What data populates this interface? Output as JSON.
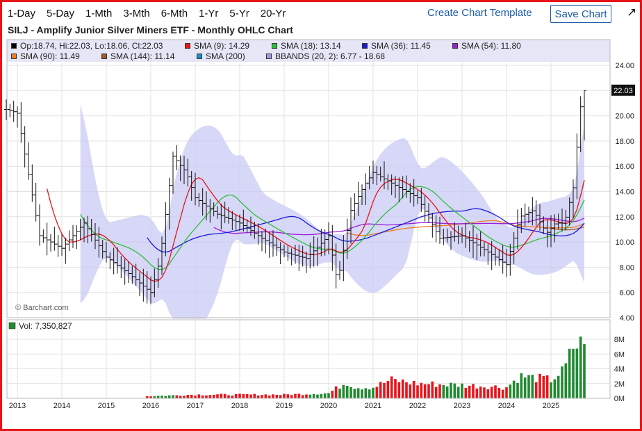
{
  "toolbar": {
    "ranges": [
      "1-Day",
      "5-Day",
      "1-Mth",
      "3-Mth",
      "6-Mth",
      "1-Yr",
      "5-Yr",
      "20-Yr"
    ],
    "template_label": "Create Chart Template",
    "save_label": "Save Chart",
    "expand_icon": "expand-arrow-icon"
  },
  "chart_title": "SILJ - Amplify Junior Silver Miners ETF - Monthly OHLC Chart",
  "legend": [
    {
      "label": "Op:18.74, Hi:22.03, Lo:18.06, Cl:22.03",
      "color": "#000000"
    },
    {
      "label": "SMA (9): 14.29",
      "color": "#e8141b"
    },
    {
      "label": "SMA (18): 13.14",
      "color": "#2ebf3a"
    },
    {
      "label": "SMA (36): 11.45",
      "color": "#1a1adb"
    },
    {
      "label": "SMA (54): 11.80",
      "color": "#9b1fd6"
    },
    {
      "label": "SMA (90): 11.49",
      "color": "#f07b22"
    },
    {
      "label": "SMA (144): 11.14",
      "color": "#9c5a2a"
    },
    {
      "label": "SMA (200)",
      "color": "#1c8fc4"
    },
    {
      "label": "BBANDS (20, 2): 6.77 - 18.68",
      "color": "#9a9ae8"
    }
  ],
  "watermark": "© Barchart.com",
  "last_price_label": "22.03",
  "volume_label": "Vol: 7,350,827",
  "chart_data": [
    {
      "type": "ohlc",
      "title": "SILJ - Amplify Junior Silver Miners ETF - Monthly OHLC Chart",
      "frequency": "monthly",
      "y_axis_ticks": [
        "4.00",
        "6.00",
        "8.00",
        "10.00",
        "12.00",
        "14.00",
        "16.00",
        "18.00",
        "20.00",
        "22.00",
        "24.00"
      ],
      "ylim": [
        4,
        24
      ],
      "x_axis_ticks": [
        "2013",
        "2014",
        "2015",
        "2016",
        "2017",
        "2018",
        "2019",
        "2020",
        "2021",
        "2022",
        "2023",
        "2024",
        "2025"
      ],
      "last_bar": {
        "open": 18.74,
        "high": 22.03,
        "low": 18.06,
        "close": 22.03
      },
      "close_estimates": {
        "x": [
          "2012.8",
          "2013.0",
          "2013.5",
          "2014.0",
          "2014.5",
          "2015.0",
          "2015.5",
          "2016.0",
          "2016.2",
          "2016.5",
          "2016.8",
          "2017.0",
          "2017.5",
          "2018.0",
          "2018.5",
          "2019.0",
          "2019.5",
          "2020.0",
          "2020.2",
          "2020.5",
          "2020.8",
          "2021.0",
          "2021.5",
          "2022.0",
          "2022.5",
          "2023.0",
          "2023.5",
          "2024.0",
          "2024.3",
          "2024.6",
          "2024.9",
          "2025.1",
          "2025.3",
          "2025.5",
          "2025.7"
        ],
        "y": [
          20.5,
          20.2,
          10.5,
          9.5,
          11.5,
          8.8,
          7.5,
          6.0,
          8.5,
          16.8,
          15.5,
          13.5,
          12.2,
          11.5,
          10.3,
          9.2,
          8.7,
          10.5,
          6.8,
          12.5,
          14.5,
          15.5,
          14.5,
          13.5,
          10.3,
          10.5,
          9.4,
          8.2,
          12.0,
          12.5,
          10.7,
          11.5,
          11.5,
          14.3,
          22.0
        ]
      },
      "series": [
        {
          "name": "SMA (9)",
          "last": 14.29
        },
        {
          "name": "SMA (18)",
          "last": 13.14
        },
        {
          "name": "SMA (36)",
          "last": 11.45
        },
        {
          "name": "SMA (54)",
          "last": 11.8
        },
        {
          "name": "SMA (90)",
          "last": 11.49
        },
        {
          "name": "SMA (144)",
          "last": 11.14
        },
        {
          "name": "SMA (200)"
        },
        {
          "name": "BBANDS (20, 2)",
          "lower": 6.77,
          "upper": 18.68
        }
      ],
      "grid": true,
      "legend_position": "top"
    },
    {
      "type": "bar",
      "title": "Vol: 7,350,827",
      "y_axis_ticks": [
        "0M",
        "2M",
        "4M",
        "6M",
        "8M"
      ],
      "ylim": [
        0,
        8
      ],
      "last_value": 7350827,
      "volume_estimates_millions": {
        "x": [
          "2016.0",
          "2017.0",
          "2018.0",
          "2019.0",
          "2020.0",
          "2020.4",
          "2020.6",
          "2021.0",
          "2021.4",
          "2022.0",
          "2023.0",
          "2024.0",
          "2024.3",
          "2024.6",
          "2025.0",
          "2025.3",
          "2025.5",
          "2025.7"
        ],
        "y": [
          0.3,
          0.5,
          0.5,
          0.5,
          0.7,
          2.2,
          1.5,
          1.5,
          2.5,
          2.0,
          1.8,
          1.5,
          3.0,
          2.8,
          2.5,
          3.8,
          7.0,
          7.35
        ]
      }
    }
  ]
}
